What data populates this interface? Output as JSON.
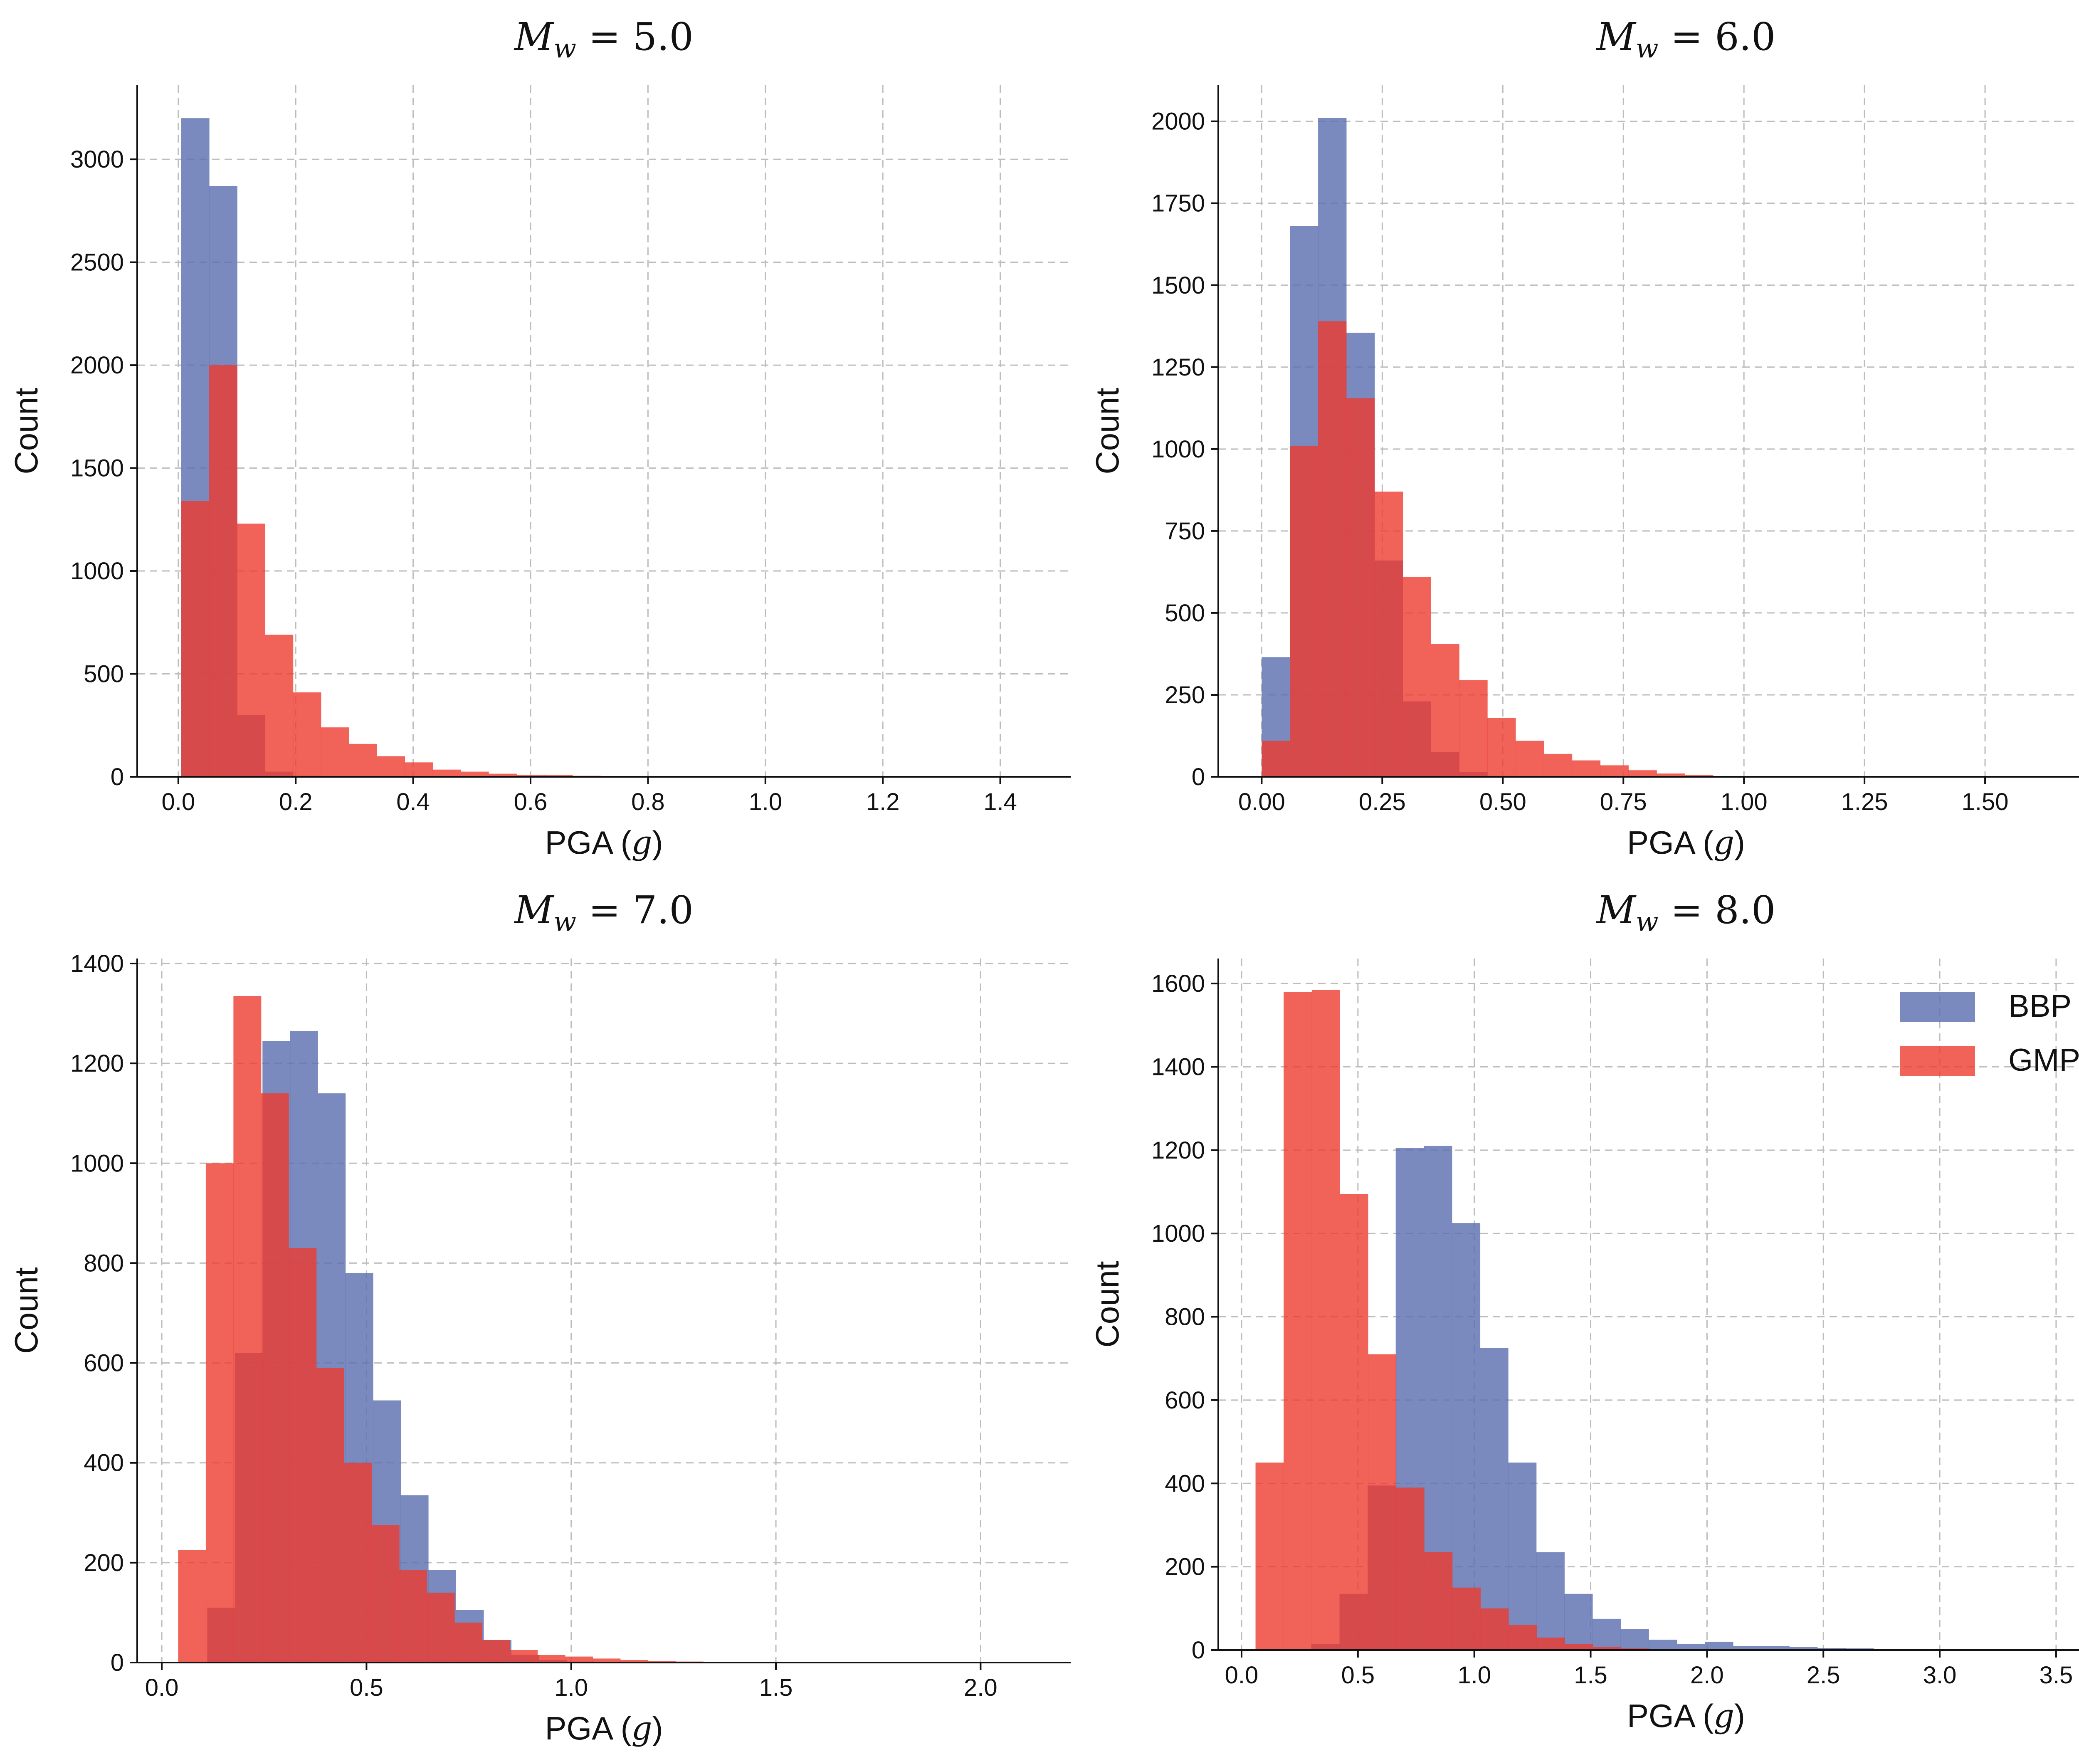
{
  "colors": {
    "bbp": "#5d6fb0",
    "gmpe": "#ee3b2f",
    "bbp_opacity": 0.82,
    "gmpe_opacity": 0.8
  },
  "legend": {
    "placement": "top-right",
    "items": [
      "BBP",
      "GMPE"
    ]
  },
  "chart_data": [
    {
      "type": "bar",
      "title_prefix": "M",
      "title_sub": "w",
      "title_suffix": " = 5.0",
      "xlabel_text": "PGA (",
      "xlabel_unit": "g",
      "xlabel_close": ")",
      "ylabel": "Count",
      "xlim": [
        -0.07,
        1.52
      ],
      "ylim": [
        0,
        3360
      ],
      "xticks": [
        0.0,
        0.2,
        0.4,
        0.6,
        0.8,
        1.0,
        1.2,
        1.4
      ],
      "xtick_labels": [
        "0.0",
        "0.2",
        "0.4",
        "0.6",
        "0.8",
        "1.0",
        "1.2",
        "1.4"
      ],
      "yticks": [
        0,
        500,
        1000,
        1500,
        2000,
        2500,
        3000
      ],
      "ytick_labels": [
        "0",
        "500",
        "1000",
        "1500",
        "2000",
        "2500",
        "3000"
      ],
      "grid": true,
      "series": [
        {
          "name": "BBP",
          "bin_start": 0.005,
          "bin_width": 0.0476,
          "values": [
            3200,
            2870,
            300,
            25,
            5
          ]
        },
        {
          "name": "GMPE",
          "bin_start": 0.005,
          "bin_width": 0.0476,
          "values": [
            1340,
            2000,
            1230,
            690,
            410,
            240,
            160,
            100,
            70,
            35,
            25,
            15,
            10,
            8,
            5,
            3,
            2,
            1
          ]
        }
      ]
    },
    {
      "type": "bar",
      "title_prefix": "M",
      "title_sub": "w",
      "title_suffix": " = 6.0",
      "xlabel_text": "PGA (",
      "xlabel_unit": "g",
      "xlabel_close": ")",
      "ylabel": "Count",
      "xlim": [
        -0.09,
        1.85
      ],
      "ylim": [
        0,
        2110
      ],
      "xticks": [
        0.0,
        0.25,
        0.5,
        0.75,
        1.0,
        1.25,
        1.5,
        1.75
      ],
      "xtick_labels": [
        "0.00",
        "0.25",
        "0.50",
        "0.75",
        "1.00",
        "1.25",
        "1.50",
        "1.75"
      ],
      "yticks": [
        0,
        250,
        500,
        750,
        1000,
        1250,
        1500,
        1750,
        2000
      ],
      "ytick_labels": [
        "0",
        "250",
        "500",
        "750",
        "1000",
        "1250",
        "1500",
        "1750",
        "2000"
      ],
      "grid": true,
      "series": [
        {
          "name": "BBP",
          "bin_start": 0.0,
          "bin_width": 0.0585,
          "values": [
            365,
            1680,
            2010,
            1355,
            660,
            230,
            75,
            15,
            3
          ]
        },
        {
          "name": "GMPE",
          "bin_start": 0.0,
          "bin_width": 0.0585,
          "values": [
            110,
            1010,
            1390,
            1155,
            870,
            610,
            405,
            295,
            180,
            110,
            70,
            50,
            35,
            20,
            10,
            5,
            2
          ]
        }
      ]
    },
    {
      "type": "bar",
      "title_prefix": "M",
      "title_sub": "w",
      "title_suffix": " = 7.0",
      "xlabel_text": "PGA (",
      "xlabel_unit": "g",
      "xlabel_close": ")",
      "ylabel": "Count",
      "xlim": [
        -0.06,
        2.22
      ],
      "ylim": [
        0,
        1410
      ],
      "xticks": [
        0.0,
        0.5,
        1.0,
        1.5,
        2.0
      ],
      "xtick_labels": [
        "0.0",
        "0.5",
        "1.0",
        "1.5",
        "2.0"
      ],
      "yticks": [
        0,
        200,
        400,
        600,
        800,
        1000,
        1200,
        1400
      ],
      "ytick_labels": [
        "0",
        "200",
        "400",
        "600",
        "800",
        "1000",
        "1200",
        "1400"
      ],
      "grid": true,
      "series": [
        {
          "name": "BBP",
          "bin_start": 0.111,
          "bin_width": 0.0675,
          "values": [
            110,
            620,
            1245,
            1265,
            1140,
            780,
            525,
            335,
            185,
            105,
            45,
            15,
            5,
            2
          ]
        },
        {
          "name": "GMPE",
          "bin_start": 0.04,
          "bin_width": 0.0675,
          "values": [
            225,
            1000,
            1335,
            1140,
            830,
            590,
            400,
            275,
            185,
            140,
            80,
            45,
            25,
            15,
            12,
            8,
            5,
            3,
            2,
            1
          ]
        }
      ]
    },
    {
      "type": "bar",
      "title_prefix": "M",
      "title_sub": "w",
      "title_suffix": " = 8.0",
      "xlabel_text": "PGA (",
      "xlabel_unit": "g",
      "xlabel_close": ")",
      "ylabel": "Count",
      "xlim": [
        -0.1,
        3.92
      ],
      "ylim": [
        0,
        1660
      ],
      "xticks": [
        0.0,
        0.5,
        1.0,
        1.5,
        2.0,
        2.5,
        3.0,
        3.5
      ],
      "xtick_labels": [
        "0.0",
        "0.5",
        "1.0",
        "1.5",
        "2.0",
        "2.5",
        "3.0",
        "3.5"
      ],
      "yticks": [
        0,
        200,
        400,
        600,
        800,
        1000,
        1200,
        1400,
        1600
      ],
      "ytick_labels": [
        "0",
        "200",
        "400",
        "600",
        "800",
        "1000",
        "1200",
        "1400",
        "1600"
      ],
      "grid": true,
      "series": [
        {
          "name": "BBP",
          "bin_start": 0.3,
          "bin_width": 0.1208,
          "values": [
            15,
            135,
            395,
            1205,
            1210,
            1025,
            725,
            450,
            235,
            135,
            75,
            50,
            25,
            15,
            20,
            10,
            10,
            7,
            5,
            4,
            3,
            3,
            2,
            2,
            1,
            1,
            1,
            1
          ]
        },
        {
          "name": "GMPE",
          "bin_start": 0.06,
          "bin_width": 0.1208,
          "values": [
            450,
            1580,
            1585,
            1095,
            710,
            390,
            235,
            150,
            100,
            60,
            30,
            15,
            8,
            4,
            2,
            1
          ]
        }
      ]
    }
  ]
}
